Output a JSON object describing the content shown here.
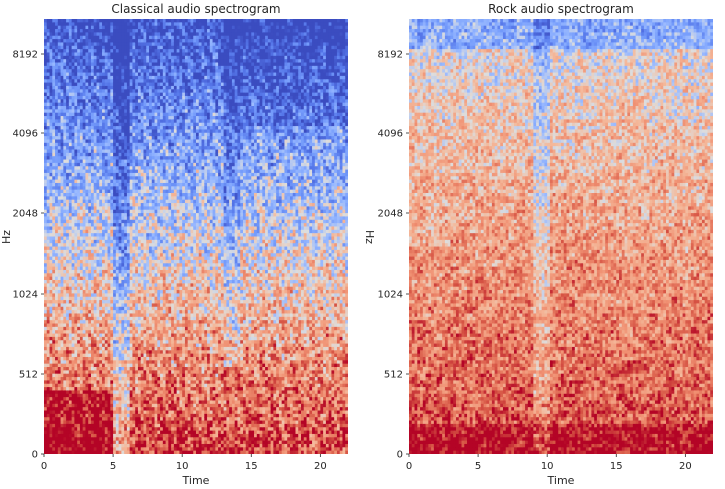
{
  "chart_data": [
    {
      "type": "heatmap",
      "title": "Classical audio spectrogram",
      "xlabel": "Time",
      "ylabel": "Hz",
      "xlim": [
        0,
        22
      ],
      "x_ticks": [
        0,
        5,
        10,
        15,
        20
      ],
      "y_ticks": [
        "0",
        "512",
        "1024",
        "2048",
        "4096",
        "8192"
      ],
      "y_scale": "log",
      "colormap": "coolwarm",
      "style": "low-energy (blue) dominates the upper frequencies; warm (red) energy concentrated below ~512 Hz, especially at 0-5 s; a blue vertical gap near 5-6 s and a darker blue band around 13-14 s"
    },
    {
      "type": "heatmap",
      "title": "Rock audio spectrogram",
      "xlabel": "Time",
      "ylabel": "Hz",
      "xlim": [
        0,
        22
      ],
      "x_ticks": [
        0,
        5,
        10,
        15,
        20
      ],
      "y_ticks": [
        "0",
        "512",
        "1024",
        "2048",
        "4096",
        "8192"
      ],
      "y_scale": "log",
      "colormap": "coolwarm",
      "style": "broadband warm energy across all frequencies, strongest (dark red) below ~512 Hz; a lighter vertical band near 9-10 s"
    }
  ]
}
